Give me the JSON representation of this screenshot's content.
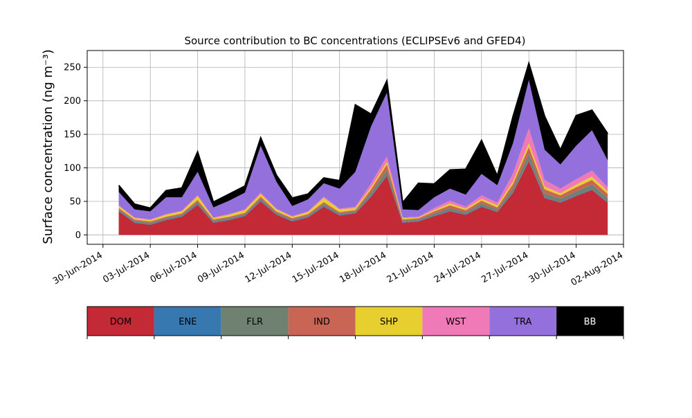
{
  "chart_data": {
    "type": "area",
    "stacked": true,
    "title": "Source contribution to BC concentrations (ECLIPSEv6 and GFED4)",
    "ylabel": "Surface concentration (ng m⁻³)",
    "xlabel": "",
    "ylim": [
      -14,
      275
    ],
    "xlim": [
      "2014-06-29",
      "2014-08-02"
    ],
    "grid": true,
    "yticks": [
      0,
      50,
      100,
      150,
      200,
      250
    ],
    "xticks": [
      "30-Jun-2014",
      "03-Jul-2014",
      "06-Jul-2014",
      "09-Jul-2014",
      "12-Jul-2014",
      "15-Jul-2014",
      "18-Jul-2014",
      "21-Jul-2014",
      "24-Jul-2014",
      "27-Jul-2014",
      "30-Jul-2014",
      "02-Aug-2014"
    ],
    "xtick_dates": [
      "2014-06-30",
      "2014-07-03",
      "2014-07-06",
      "2014-07-09",
      "2014-07-12",
      "2014-07-15",
      "2014-07-18",
      "2014-07-21",
      "2014-07-24",
      "2014-07-27",
      "2014-07-30",
      "2014-08-02"
    ],
    "x": [
      "2014-07-01",
      "2014-07-02",
      "2014-07-03",
      "2014-07-04",
      "2014-07-05",
      "2014-07-06",
      "2014-07-07",
      "2014-07-08",
      "2014-07-09",
      "2014-07-10",
      "2014-07-11",
      "2014-07-12",
      "2014-07-13",
      "2014-07-14",
      "2014-07-15",
      "2014-07-16",
      "2014-07-17",
      "2014-07-18",
      "2014-07-19",
      "2014-07-20",
      "2014-07-21",
      "2014-07-22",
      "2014-07-23",
      "2014-07-24",
      "2014-07-25",
      "2014-07-26",
      "2014-07-27",
      "2014-07-28",
      "2014-07-29",
      "2014-07-30",
      "2014-07-31",
      "2014-08-01"
    ],
    "legend_position": "below",
    "series": [
      {
        "name": "DOM",
        "color": "#c42a36",
        "values": [
          35,
          18,
          15,
          22,
          27,
          45,
          18,
          22,
          28,
          50,
          30,
          20,
          26,
          42,
          29,
          32,
          57,
          88,
          18,
          20,
          28,
          35,
          30,
          42,
          34,
          63,
          110,
          55,
          48,
          58,
          67,
          48
        ]
      },
      {
        "name": "ENE",
        "color": "#3878b0",
        "values": [
          1,
          1,
          1,
          1,
          1,
          1,
          1,
          1,
          1,
          1,
          1,
          1,
          1,
          1,
          1,
          1,
          1,
          1,
          1,
          1,
          1,
          1,
          1,
          1,
          1,
          1,
          1,
          1,
          1,
          1,
          1,
          1
        ]
      },
      {
        "name": "FLR",
        "color": "#6f8170",
        "values": [
          2,
          2,
          2,
          2,
          2,
          3,
          2,
          2,
          2,
          3,
          2,
          2,
          2,
          3,
          2,
          2,
          5,
          8,
          2,
          2,
          3,
          4,
          3,
          4,
          3,
          6,
          10,
          6,
          5,
          6,
          7,
          6
        ]
      },
      {
        "name": "IND",
        "color": "#c96555",
        "values": [
          2,
          2,
          2,
          2,
          2,
          3,
          2,
          2,
          2,
          3,
          2,
          2,
          2,
          3,
          2,
          2,
          5,
          8,
          2,
          2,
          3,
          4,
          3,
          4,
          3,
          6,
          10,
          6,
          5,
          6,
          7,
          6
        ]
      },
      {
        "name": "SHP",
        "color": "#e6cf2f",
        "values": [
          3,
          2,
          2,
          3,
          3,
          6,
          2,
          3,
          4,
          4,
          3,
          2,
          3,
          6,
          4,
          3,
          3,
          4,
          2,
          1,
          2,
          3,
          2,
          3,
          3,
          4,
          6,
          4,
          3,
          4,
          5,
          4
        ]
      },
      {
        "name": "WST",
        "color": "#f07ab8",
        "values": [
          1,
          1,
          1,
          1,
          1,
          1,
          1,
          1,
          1,
          2,
          1,
          1,
          1,
          2,
          1,
          2,
          6,
          8,
          1,
          1,
          3,
          4,
          3,
          5,
          4,
          12,
          22,
          10,
          7,
          8,
          9,
          6
        ]
      },
      {
        "name": "TRA",
        "color": "#9370db",
        "values": [
          20,
          12,
          12,
          25,
          20,
          35,
          15,
          20,
          25,
          70,
          40,
          15,
          18,
          20,
          30,
          52,
          85,
          95,
          12,
          10,
          16,
          18,
          18,
          32,
          26,
          45,
          72,
          45,
          36,
          50,
          60,
          40
        ]
      },
      {
        "name": "BB",
        "color": "#000000",
        "values": [
          10,
          8,
          5,
          10,
          14,
          30,
          8,
          10,
          10,
          12,
          10,
          12,
          8,
          8,
          12,
          100,
          18,
          18,
          10,
          40,
          20,
          28,
          38,
          50,
          14,
          40,
          25,
          50,
          22,
          45,
          30,
          40
        ]
      }
    ]
  },
  "legend": {
    "items": [
      {
        "label": "DOM",
        "color": "#c42a36",
        "text_color": "#000000"
      },
      {
        "label": "ENE",
        "color": "#3878b0",
        "text_color": "#000000"
      },
      {
        "label": "FLR",
        "color": "#6f8170",
        "text_color": "#000000"
      },
      {
        "label": "IND",
        "color": "#c96555",
        "text_color": "#000000"
      },
      {
        "label": "SHP",
        "color": "#e6cf2f",
        "text_color": "#000000"
      },
      {
        "label": "WST",
        "color": "#f07ab8",
        "text_color": "#000000"
      },
      {
        "label": "TRA",
        "color": "#9370db",
        "text_color": "#000000"
      },
      {
        "label": "BB",
        "color": "#000000",
        "text_color": "#ffffff"
      }
    ]
  }
}
